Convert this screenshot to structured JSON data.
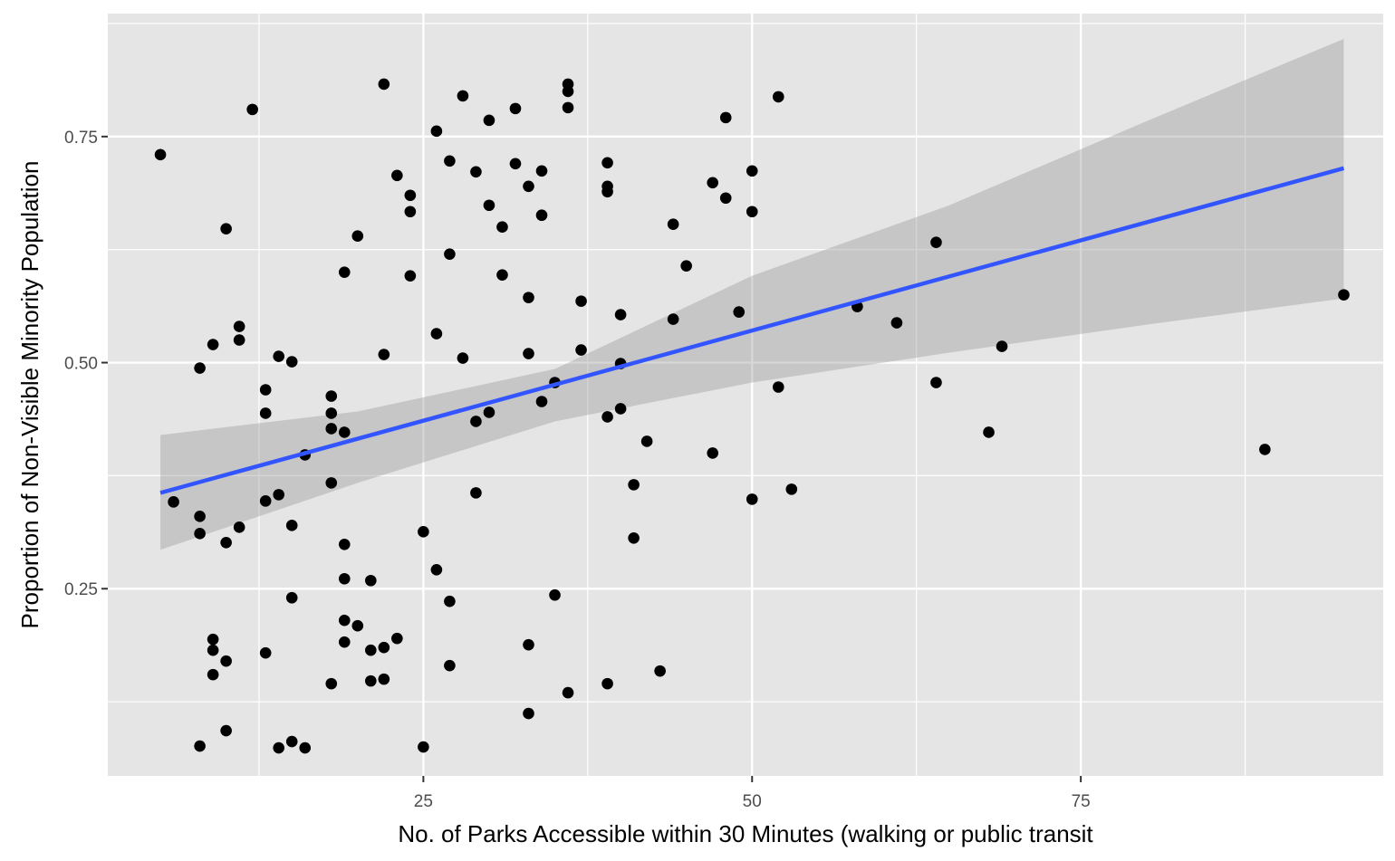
{
  "chart_data": {
    "type": "scatter",
    "title": "",
    "xlabel": "No. of Parks Accessible within 30 Minutes (walking or public transit",
    "ylabel": "Proportion of Non-Visible Minority Population",
    "xlim": [
      1,
      98
    ],
    "ylim": [
      0.043,
      0.886
    ],
    "x_ticks": [
      25,
      50,
      75
    ],
    "x_tick_labels": [
      "25",
      "50",
      "75"
    ],
    "y_ticks": [
      0.25,
      0.5,
      0.75
    ],
    "y_tick_labels": [
      "0.25",
      "0.50",
      "0.75"
    ],
    "grid": true,
    "legend": "none",
    "colors": {
      "panel_background": "#e5e5e5",
      "grid": "#ffffff",
      "points": "#000000",
      "fit_line": "#3355ff",
      "confidence_band": "#999999"
    },
    "points": [
      {
        "x": 5,
        "y": 0.73
      },
      {
        "x": 6,
        "y": 0.346
      },
      {
        "x": 8,
        "y": 0.494
      },
      {
        "x": 8,
        "y": 0.33
      },
      {
        "x": 8,
        "y": 0.311
      },
      {
        "x": 8,
        "y": 0.076
      },
      {
        "x": 9,
        "y": 0.52
      },
      {
        "x": 9,
        "y": 0.194
      },
      {
        "x": 9,
        "y": 0.182
      },
      {
        "x": 9,
        "y": 0.155
      },
      {
        "x": 10,
        "y": 0.648
      },
      {
        "x": 10,
        "y": 0.301
      },
      {
        "x": 10,
        "y": 0.17
      },
      {
        "x": 10,
        "y": 0.093
      },
      {
        "x": 11,
        "y": 0.54
      },
      {
        "x": 11,
        "y": 0.525
      },
      {
        "x": 11,
        "y": 0.318
      },
      {
        "x": 12,
        "y": 0.78
      },
      {
        "x": 13,
        "y": 0.47
      },
      {
        "x": 13,
        "y": 0.444
      },
      {
        "x": 13,
        "y": 0.347
      },
      {
        "x": 13,
        "y": 0.179
      },
      {
        "x": 14,
        "y": 0.507
      },
      {
        "x": 14,
        "y": 0.354
      },
      {
        "x": 14,
        "y": 0.074
      },
      {
        "x": 15,
        "y": 0.501
      },
      {
        "x": 15,
        "y": 0.32
      },
      {
        "x": 15,
        "y": 0.24
      },
      {
        "x": 15,
        "y": 0.081
      },
      {
        "x": 16,
        "y": 0.398
      },
      {
        "x": 16,
        "y": 0.074
      },
      {
        "x": 18,
        "y": 0.463
      },
      {
        "x": 18,
        "y": 0.444
      },
      {
        "x": 18,
        "y": 0.427
      },
      {
        "x": 18,
        "y": 0.367
      },
      {
        "x": 18,
        "y": 0.145
      },
      {
        "x": 19,
        "y": 0.6
      },
      {
        "x": 19,
        "y": 0.423
      },
      {
        "x": 19,
        "y": 0.299
      },
      {
        "x": 19,
        "y": 0.261
      },
      {
        "x": 19,
        "y": 0.215
      },
      {
        "x": 19,
        "y": 0.191
      },
      {
        "x": 20,
        "y": 0.64
      },
      {
        "x": 20,
        "y": 0.209
      },
      {
        "x": 21,
        "y": 0.259
      },
      {
        "x": 21,
        "y": 0.182
      },
      {
        "x": 21,
        "y": 0.148
      },
      {
        "x": 22,
        "y": 0.808
      },
      {
        "x": 22,
        "y": 0.509
      },
      {
        "x": 22,
        "y": 0.185
      },
      {
        "x": 22,
        "y": 0.15
      },
      {
        "x": 23,
        "y": 0.707
      },
      {
        "x": 23,
        "y": 0.195
      },
      {
        "x": 24,
        "y": 0.685
      },
      {
        "x": 24,
        "y": 0.667
      },
      {
        "x": 24,
        "y": 0.596
      },
      {
        "x": 25,
        "y": 0.313
      },
      {
        "x": 25,
        "y": 0.075
      },
      {
        "x": 26,
        "y": 0.756
      },
      {
        "x": 26,
        "y": 0.532
      },
      {
        "x": 26,
        "y": 0.271
      },
      {
        "x": 27,
        "y": 0.723
      },
      {
        "x": 27,
        "y": 0.62
      },
      {
        "x": 27,
        "y": 0.236
      },
      {
        "x": 27,
        "y": 0.165
      },
      {
        "x": 28,
        "y": 0.795
      },
      {
        "x": 28,
        "y": 0.505
      },
      {
        "x": 29,
        "y": 0.711
      },
      {
        "x": 29,
        "y": 0.435
      },
      {
        "x": 29,
        "y": 0.356
      },
      {
        "x": 30,
        "y": 0.768
      },
      {
        "x": 30,
        "y": 0.674
      },
      {
        "x": 30,
        "y": 0.445
      },
      {
        "x": 31,
        "y": 0.65
      },
      {
        "x": 31,
        "y": 0.597
      },
      {
        "x": 32,
        "y": 0.781
      },
      {
        "x": 32,
        "y": 0.72
      },
      {
        "x": 33,
        "y": 0.695
      },
      {
        "x": 33,
        "y": 0.572
      },
      {
        "x": 33,
        "y": 0.51
      },
      {
        "x": 33,
        "y": 0.188
      },
      {
        "x": 33,
        "y": 0.112
      },
      {
        "x": 34,
        "y": 0.712
      },
      {
        "x": 34,
        "y": 0.663
      },
      {
        "x": 34,
        "y": 0.457
      },
      {
        "x": 35,
        "y": 0.478
      },
      {
        "x": 35,
        "y": 0.243
      },
      {
        "x": 36,
        "y": 0.808
      },
      {
        "x": 36,
        "y": 0.8
      },
      {
        "x": 36,
        "y": 0.782
      },
      {
        "x": 36,
        "y": 0.135
      },
      {
        "x": 37,
        "y": 0.568
      },
      {
        "x": 37,
        "y": 0.514
      },
      {
        "x": 39,
        "y": 0.721
      },
      {
        "x": 39,
        "y": 0.695
      },
      {
        "x": 39,
        "y": 0.689
      },
      {
        "x": 39,
        "y": 0.44
      },
      {
        "x": 39,
        "y": 0.145
      },
      {
        "x": 40,
        "y": 0.553
      },
      {
        "x": 40,
        "y": 0.499
      },
      {
        "x": 40,
        "y": 0.449
      },
      {
        "x": 41,
        "y": 0.365
      },
      {
        "x": 41,
        "y": 0.306
      },
      {
        "x": 42,
        "y": 0.413
      },
      {
        "x": 43,
        "y": 0.159
      },
      {
        "x": 44,
        "y": 0.653
      },
      {
        "x": 44,
        "y": 0.548
      },
      {
        "x": 45,
        "y": 0.607
      },
      {
        "x": 47,
        "y": 0.699
      },
      {
        "x": 47,
        "y": 0.4
      },
      {
        "x": 48,
        "y": 0.771
      },
      {
        "x": 48,
        "y": 0.682
      },
      {
        "x": 49,
        "y": 0.556
      },
      {
        "x": 50,
        "y": 0.712
      },
      {
        "x": 50,
        "y": 0.667
      },
      {
        "x": 50,
        "y": 0.349
      },
      {
        "x": 52,
        "y": 0.794
      },
      {
        "x": 52,
        "y": 0.473
      },
      {
        "x": 53,
        "y": 0.36
      },
      {
        "x": 58,
        "y": 0.562
      },
      {
        "x": 61,
        "y": 0.544
      },
      {
        "x": 64,
        "y": 0.633
      },
      {
        "x": 64,
        "y": 0.478
      },
      {
        "x": 68,
        "y": 0.423
      },
      {
        "x": 69,
        "y": 0.518
      },
      {
        "x": 89,
        "y": 0.404
      },
      {
        "x": 95,
        "y": 0.575
      }
    ],
    "fit_line": {
      "method": "linear",
      "x": [
        5,
        95
      ],
      "y": [
        0.356,
        0.715
      ]
    },
    "confidence_band": {
      "x": [
        5,
        20,
        35,
        50,
        65,
        80,
        95
      ],
      "lower": [
        0.293,
        0.367,
        0.435,
        0.478,
        0.511,
        0.542,
        0.571
      ],
      "upper": [
        0.42,
        0.446,
        0.493,
        0.596,
        0.674,
        0.767,
        0.858
      ]
    }
  }
}
